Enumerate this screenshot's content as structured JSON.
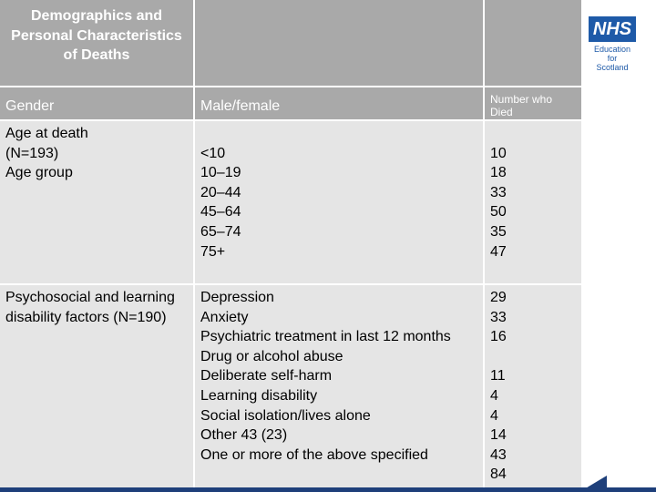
{
  "table": {
    "header": {
      "col1": "Demographics and Personal Characteristics of Deaths",
      "col2": "",
      "col3": ""
    },
    "gender_row": {
      "label": "Gender",
      "value": "Male/female",
      "count_header": "Number who Died"
    },
    "age_row": {
      "label": "Age at death\n(N=193)\nAge group",
      "groups": "\n<10\n10–19\n20–44\n45–64\n65–74\n75+",
      "counts": "\n10\n18\n33\n50\n35\n47"
    },
    "psych_row": {
      "label": "Psychosocial and learning disability factors (N=190)",
      "factors": "Depression\nAnxiety\nPsychiatric treatment in last 12 months\nDrug or alcohol abuse\nDeliberate self-harm\nLearning disability\nSocial isolation/lives alone\nOther 43 (23)\nOne or more of the above specified",
      "counts": "29\n33\n16\n\n11\n4\n4\n14\n43\n84"
    }
  },
  "logo": {
    "brand": "NHS",
    "subtitle": "Education\nfor\nScotland"
  },
  "colors": {
    "header_bg": "#a9a9a9",
    "cell_bg": "#e5e5e5",
    "brand_blue": "#1e5aa8",
    "footer_navy": "#1e3f7a"
  }
}
